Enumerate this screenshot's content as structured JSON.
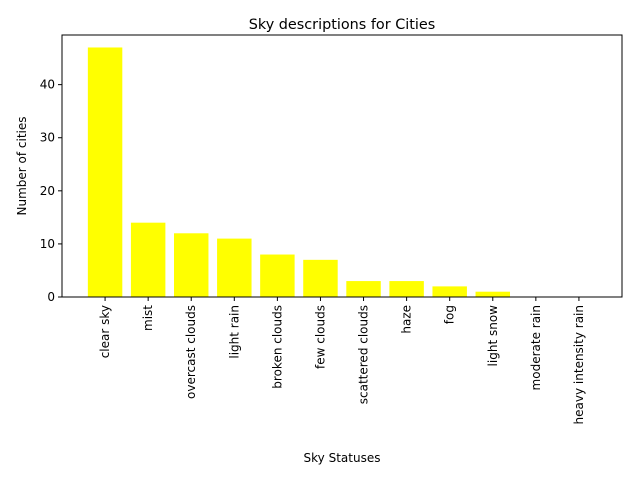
{
  "chart_data": {
    "type": "bar",
    "title": "Sky descriptions for Cities",
    "xlabel": "Sky Statuses",
    "ylabel": "Number of cities",
    "categories": [
      "clear sky",
      "mist",
      "overcast clouds",
      "light rain",
      "broken clouds",
      "few clouds",
      "scattered clouds",
      "haze",
      "fog",
      "light snow",
      "moderate rain",
      "heavy intensity rain"
    ],
    "values": [
      47,
      14,
      12,
      11,
      8,
      7,
      3,
      3,
      2,
      1,
      0,
      0
    ],
    "ylim": [
      0,
      49.35
    ],
    "yticks": [
      0,
      10,
      20,
      30,
      40
    ],
    "bar_color": "#ffff00",
    "grid": false,
    "legend": false
  }
}
